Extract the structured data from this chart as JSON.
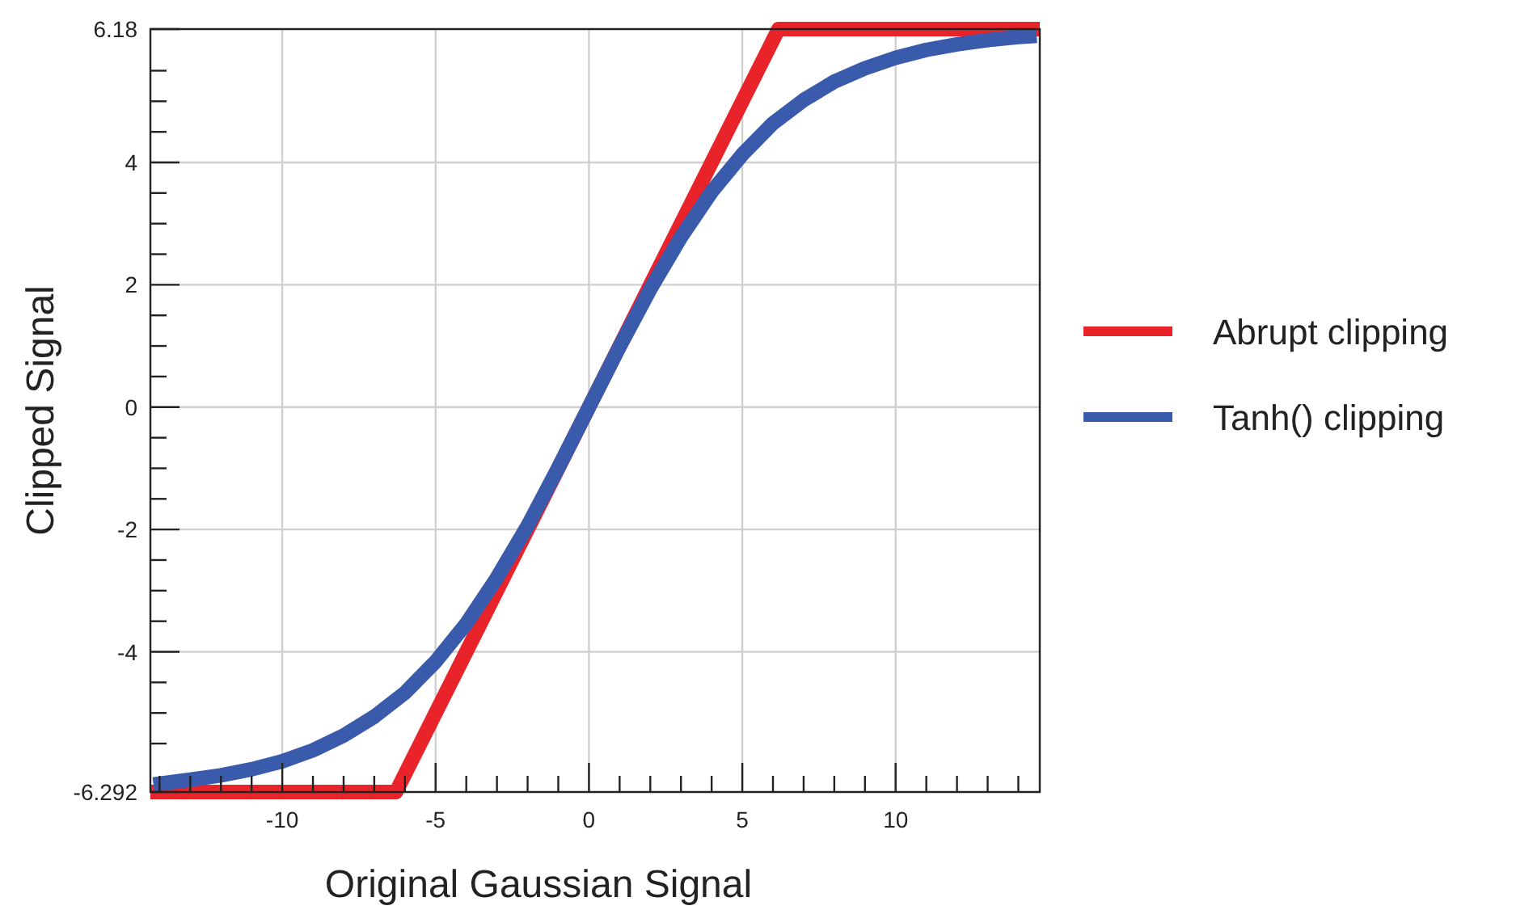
{
  "chart_data": {
    "type": "line",
    "xlabel": "Original Gaussian Signal",
    "ylabel": "Clipped Signal",
    "xlim": [
      -14.3,
      14.7
    ],
    "ylim": [
      -6.292,
      6.18
    ],
    "xticks": [
      {
        "value": -14,
        "label": null
      },
      {
        "value": -13,
        "label": null
      },
      {
        "value": -12,
        "label": null
      },
      {
        "value": -11,
        "label": null
      },
      -10,
      {
        "value": -9,
        "label": null
      },
      {
        "value": -8,
        "label": null
      },
      {
        "value": -7,
        "label": null
      },
      {
        "value": -6,
        "label": null
      },
      -5,
      {
        "value": -4,
        "label": null
      },
      {
        "value": -3,
        "label": null
      },
      {
        "value": -2,
        "label": null
      },
      {
        "value": -1,
        "label": null
      },
      0,
      {
        "value": 1,
        "label": null
      },
      {
        "value": 2,
        "label": null
      },
      {
        "value": 3,
        "label": null
      },
      {
        "value": 4,
        "label": null
      },
      5,
      {
        "value": 6,
        "label": null
      },
      {
        "value": 7,
        "label": null
      },
      {
        "value": 8,
        "label": null
      },
      {
        "value": 9,
        "label": null
      },
      10,
      {
        "value": 11,
        "label": null
      },
      {
        "value": 12,
        "label": null
      },
      {
        "value": 13,
        "label": null
      },
      {
        "value": 14,
        "label": null
      }
    ],
    "yticks": [
      -6.292,
      {
        "value": -5.5,
        "label": null
      },
      {
        "value": -5,
        "label": null
      },
      {
        "value": -4.5,
        "label": null
      },
      -4,
      {
        "value": -3.5,
        "label": null
      },
      {
        "value": -3,
        "label": null
      },
      {
        "value": -2.5,
        "label": null
      },
      -2,
      {
        "value": -1.5,
        "label": null
      },
      {
        "value": -1,
        "label": null
      },
      {
        "value": -0.5,
        "label": null
      },
      0,
      {
        "value": 0.5,
        "label": null
      },
      {
        "value": 1,
        "label": null
      },
      {
        "value": 1.5,
        "label": null
      },
      2,
      {
        "value": 2.5,
        "label": null
      },
      {
        "value": 3,
        "label": null
      },
      {
        "value": 3.5,
        "label": null
      },
      4,
      {
        "value": 4.5,
        "label": null
      },
      {
        "value": 5,
        "label": null
      },
      {
        "value": 5.5,
        "label": null
      },
      6.18
    ],
    "grid": true,
    "legend": "right",
    "marker": "none",
    "line_style": "solid",
    "series": [
      {
        "name": "Abrupt clipping",
        "color": "#e8232a",
        "x": [
          -14.3,
          -6.292,
          6.18,
          14.7
        ],
        "values": [
          -6.292,
          -6.292,
          6.18,
          6.18
        ]
      },
      {
        "name": "Tanh() clipping",
        "color": "#3a5aab",
        "x": [
          -14.2,
          -13,
          -12,
          -11,
          -10,
          -9,
          -8,
          -7,
          -6,
          -5,
          -4,
          -3,
          -2,
          -1,
          0,
          1,
          2,
          3,
          4,
          5,
          6,
          7,
          8,
          9,
          10,
          11,
          12,
          13,
          14,
          14.6
        ],
        "values": [
          -6.17,
          -6.09,
          -6.02,
          -5.92,
          -5.79,
          -5.61,
          -5.37,
          -5.06,
          -4.67,
          -4.16,
          -3.54,
          -2.79,
          -1.94,
          -0.99,
          0,
          0.99,
          1.93,
          2.78,
          3.52,
          4.13,
          4.64,
          5.02,
          5.32,
          5.54,
          5.71,
          5.84,
          5.93,
          6.0,
          6.05,
          6.07
        ]
      }
    ]
  }
}
